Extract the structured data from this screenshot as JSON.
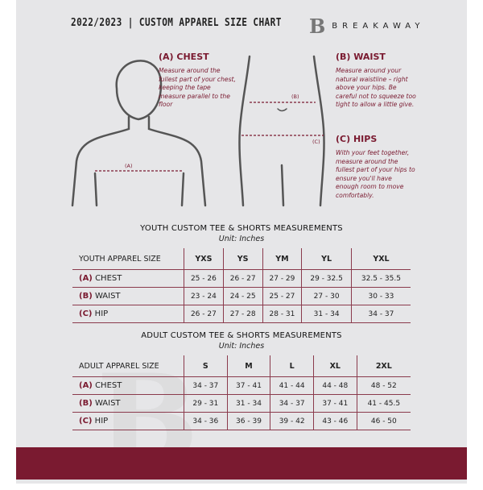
{
  "header": {
    "title": "2022/2023  |  CUSTOM APPAREL SIZE CHART",
    "brand": "BREAKAWAY",
    "logo_letter": "B"
  },
  "guides": {
    "chest": {
      "heading": "(A) CHEST",
      "text": "Measure around the fullest part of your chest, keeping the tape measure parallel to the floor",
      "marker": "(A)"
    },
    "waist": {
      "heading": "(B) WAIST",
      "text": "Measure around your natural waistline – right above your hips. Be careful not to squeeze too tight to allow a little give.",
      "marker": "(B)"
    },
    "hips": {
      "heading": "(C) HIPS",
      "text": "With your feet together, measure around the fullest part of your hips to ensure you'll have enough room to move comfortably.",
      "marker": "(C)"
    }
  },
  "youth": {
    "title": "YOUTH CUSTOM TEE & SHORTS MEASUREMENTS",
    "unit": "Unit: Inches",
    "header": [
      "YOUTH APPAREL SIZE",
      "YXS",
      "YS",
      "YM",
      "YL",
      "YXL"
    ],
    "rows": [
      {
        "code": "(A)",
        "name": "CHEST",
        "values": [
          "25 - 26",
          "26 - 27",
          "27 - 29",
          "29 - 32.5",
          "32.5 - 35.5"
        ]
      },
      {
        "code": "(B)",
        "name": "WAIST",
        "values": [
          "23 - 24",
          "24 - 25",
          "25 - 27",
          "27 - 30",
          "30 - 33"
        ]
      },
      {
        "code": "(C)",
        "name": "HIP",
        "values": [
          "26 - 27",
          "27 - 28",
          "28 - 31",
          "31 - 34",
          "34 - 37"
        ]
      }
    ]
  },
  "adult": {
    "title": "ADULT CUSTOM TEE & SHORTS MEASUREMENTS",
    "unit": "Unit: Inches",
    "header": [
      "ADULT APPAREL SIZE",
      "S",
      "M",
      "L",
      "XL",
      "2XL"
    ],
    "rows": [
      {
        "code": "(A)",
        "name": "CHEST",
        "values": [
          "34 - 37",
          "37 - 41",
          "41 - 44",
          "44 - 48",
          "48 - 52"
        ]
      },
      {
        "code": "(B)",
        "name": "WAIST",
        "values": [
          "29 - 31",
          "31 - 34",
          "34 - 37",
          "37 - 41",
          "41 - 45.5"
        ]
      },
      {
        "code": "(C)",
        "name": "HIP",
        "values": [
          "34 - 36",
          "36 - 39",
          "39 - 42",
          "43 - 46",
          "46 - 50"
        ]
      }
    ]
  },
  "colors": {
    "accent": "#7a1a30",
    "background": "#e6e6e8"
  }
}
